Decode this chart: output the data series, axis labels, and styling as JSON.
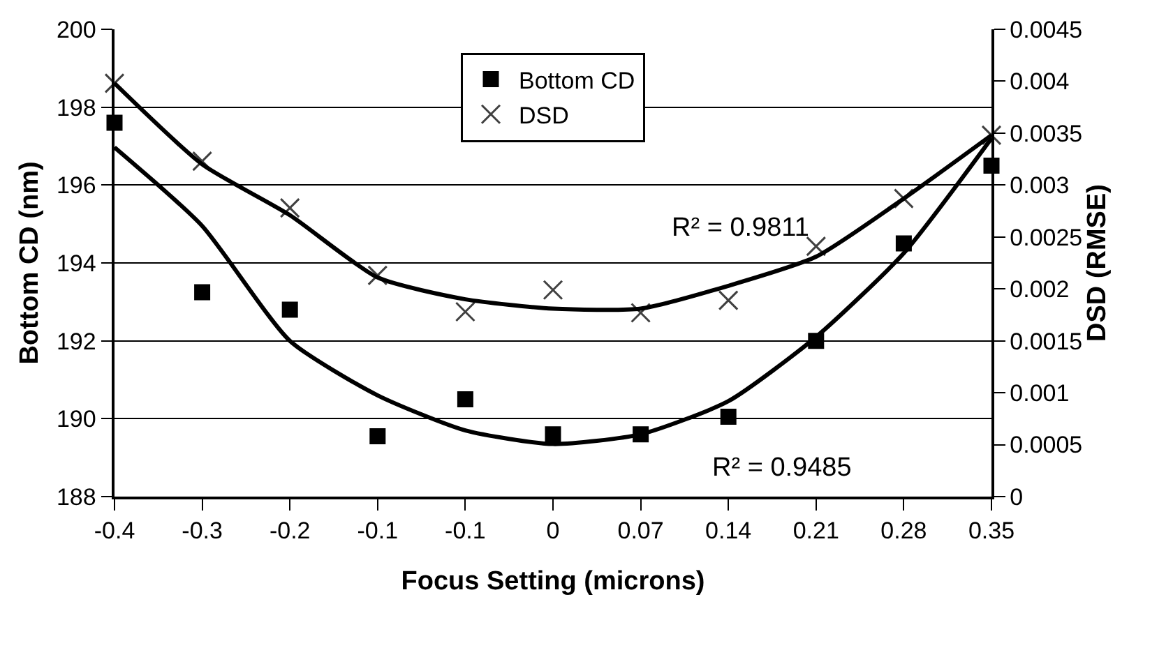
{
  "chart_data": {
    "type": "scatter",
    "xlabel": "Focus Setting (microns)",
    "ylabel": "Bottom CD (nm)",
    "y2label": "DSD (RMSE)",
    "categories": [
      "-0.4",
      "-0.3",
      "-0.2",
      "-0.1",
      "-0.1",
      "0",
      "0.07",
      "0.14",
      "0.21",
      "0.28",
      "0.35"
    ],
    "series": [
      {
        "name": "Bottom CD",
        "color": "#000000",
        "marker": "square",
        "values": [
          197.6,
          193.25,
          192.8,
          189.55,
          190.5,
          189.6,
          189.6,
          190.05,
          192.0,
          194.5,
          196.5
        ]
      },
      {
        "name": "DSD",
        "color": "#404040",
        "marker": "cross",
        "axis": "y2",
        "values": [
          0.00398,
          0.00323,
          0.00278,
          0.00213,
          0.00178,
          0.00199,
          0.00177,
          0.00189,
          0.00241,
          0.00287,
          0.00348
        ]
      },
      {
        "type": "line",
        "color": "#000000",
        "values": [
          196.97,
          194.95,
          192.0,
          190.6,
          189.7,
          189.35,
          189.6,
          190.45,
          192.1,
          194.25,
          197.2
        ]
      },
      {
        "type": "line",
        "color": "#000000",
        "axis": "y2",
        "values": [
          0.00398,
          0.0032,
          0.00271,
          0.00211,
          0.0019,
          0.00181,
          0.00181,
          0.00203,
          0.00231,
          0.00287,
          0.00348
        ]
      }
    ],
    "ylim": [
      188,
      200
    ],
    "yticks": [
      188,
      190,
      192,
      194,
      196,
      198,
      200
    ],
    "y2lim": [
      0,
      0.0045
    ],
    "y2ticks": [
      0,
      0.0005,
      0.001,
      0.0015,
      0.002,
      0.0025,
      0.003,
      0.0035,
      0.004,
      0.0045
    ],
    "grid": "y",
    "legend": "top",
    "annotations": [
      "R² = 0.9811",
      "R² = 0.9485"
    ]
  }
}
